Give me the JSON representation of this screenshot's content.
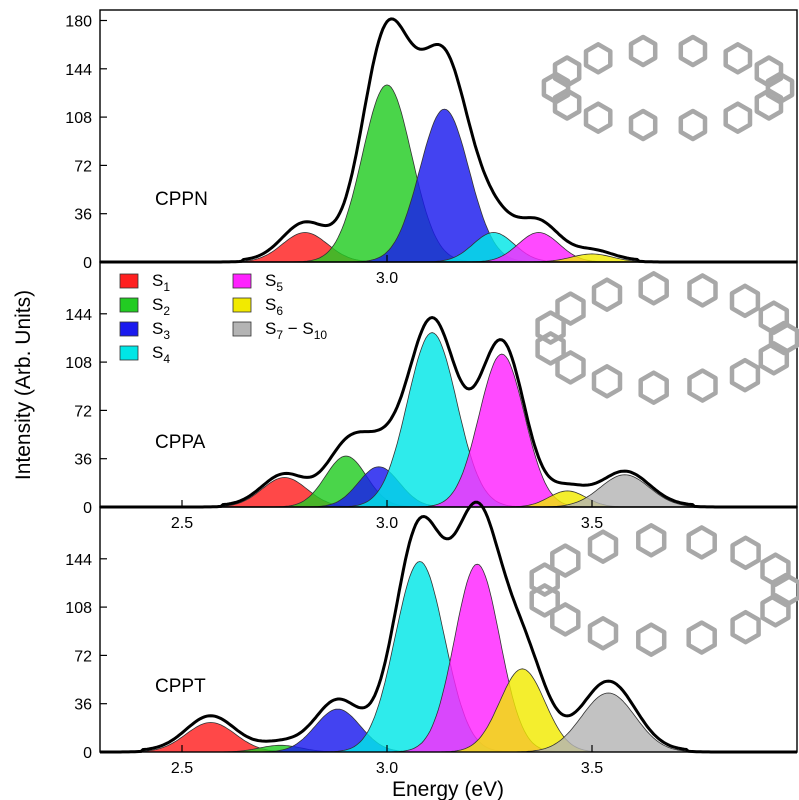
{
  "figure": {
    "ylabel": "Intensity (Arb. Units)",
    "xlabel": "Energy (eV)"
  },
  "legend": [
    {
      "label": "S",
      "sub": "1",
      "color": "#ff2020"
    },
    {
      "label": "S",
      "sub": "2",
      "color": "#22cc22"
    },
    {
      "label": "S",
      "sub": "3",
      "color": "#1a1aee"
    },
    {
      "label": "S",
      "sub": "4",
      "color": "#00e6e6"
    },
    {
      "label": "S",
      "sub": "5",
      "color": "#ff22ff"
    },
    {
      "label": "S",
      "sub": "6",
      "color": "#f2ea00"
    },
    {
      "label": "S",
      "sub": "7",
      "label2": " − S",
      "sub2": "10",
      "color": "#b4b4b4"
    }
  ],
  "chart_data": [
    {
      "type": "area",
      "panel_label": "CPPN",
      "x_tick_labels": [
        "3.0"
      ],
      "x_ticks": [
        3.0
      ],
      "y_ticks": [
        0,
        36,
        72,
        108,
        144,
        180
      ],
      "xlim": [
        2.3,
        4.0
      ],
      "ylim": [
        0,
        180
      ],
      "series": [
        {
          "name": "S1",
          "center": 2.8,
          "height": 22,
          "sigma": 0.055
        },
        {
          "name": "S2",
          "center": 3.0,
          "height": 132,
          "sigma": 0.06
        },
        {
          "name": "S3",
          "center": 3.14,
          "height": 114,
          "sigma": 0.06
        },
        {
          "name": "S4",
          "center": 3.26,
          "height": 22,
          "sigma": 0.05
        },
        {
          "name": "S5",
          "center": 3.37,
          "height": 22,
          "sigma": 0.05
        },
        {
          "name": "S6",
          "center": 3.5,
          "height": 6,
          "sigma": 0.05
        }
      ],
      "envelope_peak": 180
    },
    {
      "type": "area",
      "panel_label": "CPPA",
      "x_tick_labels": [
        "2.5",
        "3.0",
        "3.5"
      ],
      "x_ticks": [
        2.5,
        3.0,
        3.5
      ],
      "y_ticks": [
        0,
        36,
        72,
        108,
        144
      ],
      "xlim": [
        2.3,
        4.0
      ],
      "ylim": [
        0,
        180
      ],
      "series": [
        {
          "name": "S1",
          "center": 2.75,
          "height": 22,
          "sigma": 0.055
        },
        {
          "name": "S2",
          "center": 2.9,
          "height": 38,
          "sigma": 0.05
        },
        {
          "name": "S3",
          "center": 2.98,
          "height": 30,
          "sigma": 0.05
        },
        {
          "name": "S4",
          "center": 3.11,
          "height": 130,
          "sigma": 0.06
        },
        {
          "name": "S5",
          "center": 3.28,
          "height": 114,
          "sigma": 0.055
        },
        {
          "name": "S6",
          "center": 3.44,
          "height": 12,
          "sigma": 0.045
        },
        {
          "name": "S7-S10",
          "center": 3.58,
          "height": 24,
          "sigma": 0.06
        }
      ],
      "envelope_peak": 140
    },
    {
      "type": "area",
      "panel_label": "CPPT",
      "x_tick_labels": [
        "2.5",
        "3.0",
        "3.5"
      ],
      "x_ticks": [
        2.5,
        3.0,
        3.5
      ],
      "y_ticks": [
        0,
        36,
        72,
        108,
        144
      ],
      "xlim": [
        2.3,
        4.0
      ],
      "ylim": [
        0,
        180
      ],
      "series": [
        {
          "name": "S1",
          "center": 2.57,
          "height": 22,
          "sigma": 0.06
        },
        {
          "name": "S2",
          "center": 2.74,
          "height": 5,
          "sigma": 0.05
        },
        {
          "name": "S3",
          "center": 2.88,
          "height": 32,
          "sigma": 0.055
        },
        {
          "name": "S4",
          "center": 3.08,
          "height": 142,
          "sigma": 0.06
        },
        {
          "name": "S5",
          "center": 3.22,
          "height": 140,
          "sigma": 0.055
        },
        {
          "name": "S6",
          "center": 3.33,
          "height": 62,
          "sigma": 0.055
        },
        {
          "name": "S7-S10",
          "center": 3.54,
          "height": 44,
          "sigma": 0.065
        }
      ],
      "envelope_peak": 185
    }
  ],
  "colors": {
    "S1": "#ff2020",
    "S2": "#22cc22",
    "S3": "#1a1aee",
    "S4": "#00e6e6",
    "S5": "#ff22ff",
    "S6": "#f2ea00",
    "S7-S10": "#b4b4b4"
  }
}
